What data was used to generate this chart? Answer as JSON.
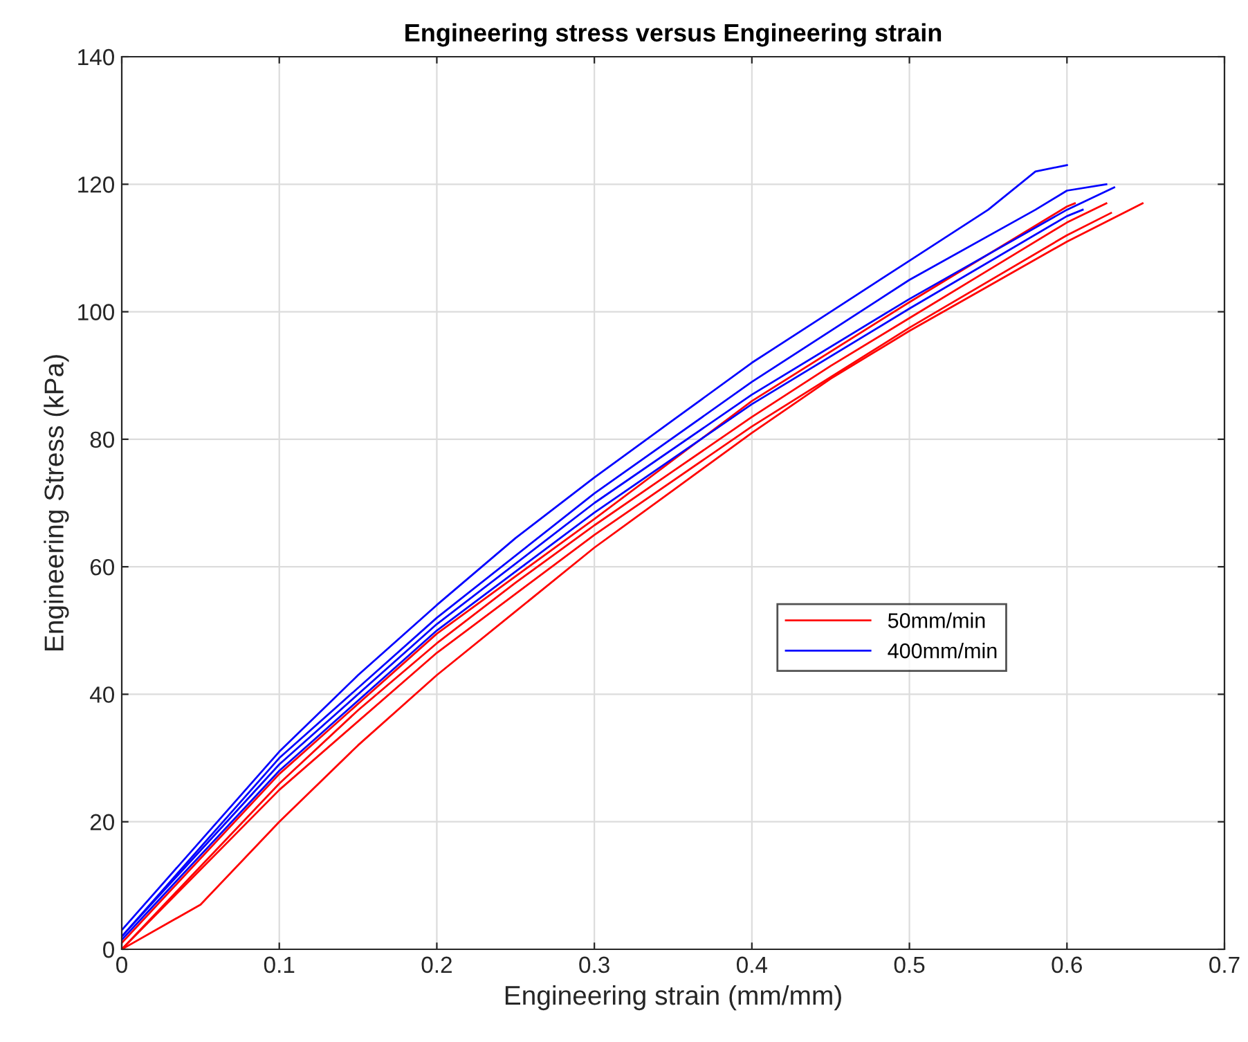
{
  "chart_data": {
    "type": "line",
    "title": "Engineering stress versus Engineering strain",
    "xlabel": "Engineering strain (mm/mm)",
    "ylabel": "Engineering Stress (kPa)",
    "xlim": [
      0,
      0.7
    ],
    "xticks": [
      0,
      0.1,
      0.2,
      0.3,
      0.4,
      0.5,
      0.6,
      0.7
    ],
    "ylim": [
      0,
      140
    ],
    "yticks": [
      0,
      20,
      40,
      60,
      80,
      100,
      120,
      140
    ],
    "grid": true,
    "legend": "right",
    "line_style": "solid",
    "marker": "none",
    "series": [
      {
        "name": "50mm/min",
        "color": "#ff0000",
        "x": [
          0,
          0.05,
          0.1,
          0.15,
          0.2,
          0.25,
          0.3,
          0.35,
          0.4,
          0.45,
          0.5,
          0.55,
          0.6,
          0.625
        ],
        "values": [
          0,
          13,
          26,
          37.5,
          48,
          57.5,
          66.5,
          75,
          83.5,
          91.5,
          99,
          106.5,
          114,
          117
        ]
      },
      {
        "name": "400mm/min",
        "color": "#0000ff",
        "x": [
          0,
          0.05,
          0.1,
          0.15,
          0.2,
          0.25,
          0.3,
          0.35,
          0.4,
          0.45,
          0.5,
          0.55,
          0.58,
          0.6
        ],
        "values": [
          3,
          17,
          31,
          43,
          54,
          64.5,
          74,
          83,
          92,
          100,
          108,
          116,
          122,
          123
        ]
      },
      {
        "color": "#ff0000",
        "x": [
          0,
          0.05,
          0.1,
          0.15,
          0.2,
          0.25,
          0.3,
          0.35,
          0.4,
          0.45,
          0.5,
          0.55,
          0.6,
          0.648
        ],
        "values": [
          0,
          7,
          20,
          32,
          43,
          53,
          63,
          72,
          81,
          89.5,
          97,
          104,
          111,
          117
        ]
      },
      {
        "color": "#ff0000",
        "x": [
          0,
          0.1,
          0.2,
          0.3,
          0.4,
          0.5,
          0.6,
          0.605
        ],
        "values": [
          1,
          27.5,
          49.5,
          67.5,
          86,
          101.5,
          116.5,
          117
        ]
      },
      {
        "color": "#ff0000",
        "x": [
          0,
          0.1,
          0.2,
          0.3,
          0.4,
          0.5,
          0.6,
          0.628
        ],
        "values": [
          0,
          25,
          46.5,
          65,
          82,
          97.5,
          112,
          115.5
        ]
      },
      {
        "color": "#0000ff",
        "x": [
          0,
          0.1,
          0.2,
          0.3,
          0.4,
          0.5,
          0.58,
          0.6,
          0.625
        ],
        "values": [
          2,
          30,
          52,
          71.5,
          89,
          105,
          116,
          119,
          120
        ]
      },
      {
        "color": "#0000ff",
        "x": [
          0,
          0.1,
          0.2,
          0.3,
          0.4,
          0.5,
          0.6,
          0.63
        ],
        "values": [
          2,
          29,
          51,
          70,
          87,
          102,
          116,
          119.5
        ]
      },
      {
        "color": "#0000ff",
        "x": [
          0,
          0.1,
          0.2,
          0.3,
          0.4,
          0.5,
          0.6,
          0.61
        ],
        "values": [
          1.5,
          28,
          50,
          68.5,
          85.5,
          100.5,
          115,
          116
        ]
      }
    ]
  }
}
